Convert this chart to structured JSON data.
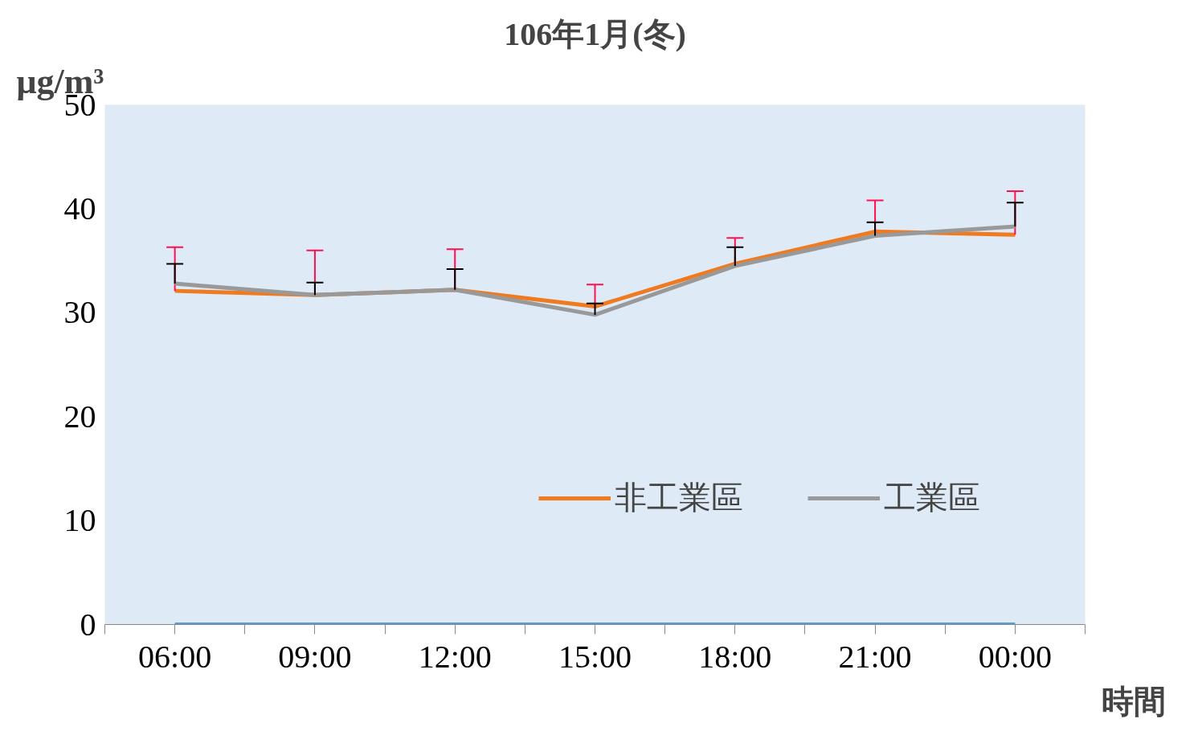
{
  "chart_data": {
    "type": "line",
    "title": "106年1月(冬)",
    "ylabel": "μg/m³",
    "xlabel": "時間",
    "categories": [
      "06:00",
      "09:00",
      "12:00",
      "15:00",
      "18:00",
      "21:00",
      "00:00"
    ],
    "series": [
      {
        "name": "非工業區",
        "color": "#f07a20",
        "values": [
          32.1,
          31.7,
          32.2,
          30.6,
          34.7,
          37.8,
          37.5
        ],
        "errors": [
          [
            32.1,
            36.3
          ],
          [
            31.7,
            36.0
          ],
          [
            32.2,
            36.1
          ],
          [
            30.6,
            32.7
          ],
          [
            34.7,
            37.2
          ],
          [
            37.8,
            40.8
          ],
          [
            37.5,
            41.7
          ]
        ]
      },
      {
        "name": "工業區",
        "color": "#999999",
        "values": [
          32.8,
          31.7,
          32.2,
          29.8,
          34.5,
          37.4,
          38.3
        ],
        "errors": [
          [
            32.8,
            34.7
          ],
          [
            31.7,
            32.9
          ],
          [
            32.2,
            34.2
          ],
          [
            29.8,
            30.9
          ],
          [
            34.5,
            36.3
          ],
          [
            37.4,
            38.7
          ],
          [
            38.3,
            40.6
          ]
        ]
      },
      {
        "color": "#5b9bd5",
        "values": [
          0,
          0,
          0,
          0,
          0,
          0,
          0
        ]
      }
    ],
    "ylim": [
      0,
      50
    ],
    "yticks": [
      0,
      10,
      20,
      30,
      40,
      50
    ],
    "grid": false,
    "legend": "bottom right",
    "marker": "none",
    "line_style": "solid"
  }
}
